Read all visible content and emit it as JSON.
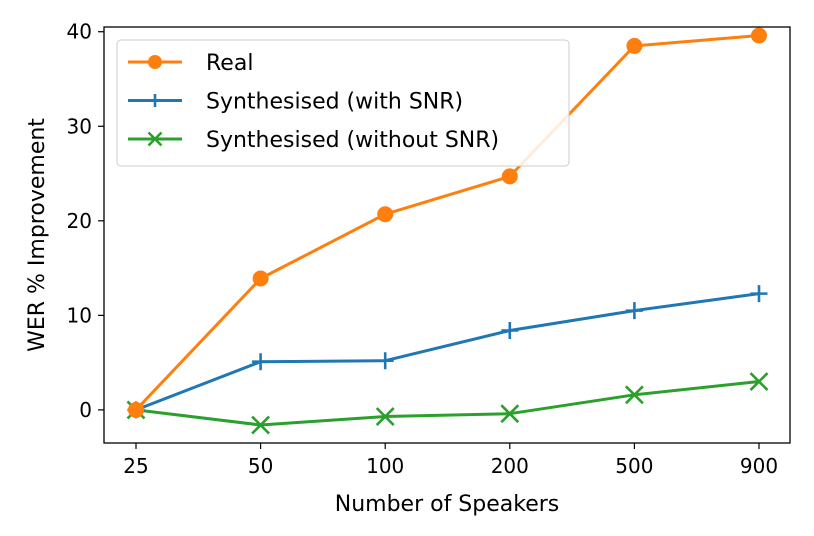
{
  "chart_data": {
    "type": "line",
    "categories": [
      "25",
      "50",
      "100",
      "200",
      "500",
      "900"
    ],
    "xlabel": "Number of Speakers",
    "ylabel": "WER % Improvement",
    "ylim": [
      -3.5,
      40.5
    ],
    "yticks": [
      0,
      10,
      20,
      30,
      40
    ],
    "grid": false,
    "legend_position": "top-left",
    "series": [
      {
        "name": "Real",
        "marker": "circle",
        "color": "#ff7f0e",
        "values": [
          0.0,
          13.9,
          20.7,
          24.7,
          38.5,
          39.6
        ]
      },
      {
        "name": "Synthesised (with SNR)",
        "marker": "plus",
        "color": "#1f77b4",
        "values": [
          0.0,
          5.1,
          5.2,
          8.4,
          10.5,
          12.3
        ]
      },
      {
        "name": "Synthesised (without SNR)",
        "marker": "x",
        "color": "#2ca02c",
        "values": [
          0.0,
          -1.6,
          -0.7,
          -0.4,
          1.6,
          3.0
        ]
      }
    ]
  }
}
